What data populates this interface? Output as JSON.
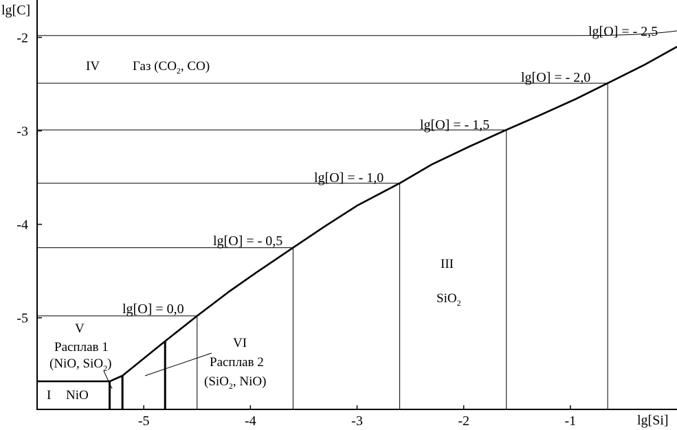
{
  "chart_data": {
    "type": "line",
    "title": "",
    "xlabel": "lg[Si]",
    "ylabel": "lg[C]",
    "xlim": [
      -6.0,
      0.0
    ],
    "ylim": [
      -5.98,
      -1.6
    ],
    "x_ticks": [
      -5,
      -4,
      -3,
      -2,
      -1
    ],
    "x_tick_labels": [
      "-5",
      "-4",
      "-3",
      "-2",
      "-1"
    ],
    "y_ticks": [
      -2,
      -3,
      -4,
      -5
    ],
    "y_tick_labels": [
      "-2",
      "-3",
      "-4",
      "-5"
    ],
    "grid": false,
    "boundary": {
      "name": "",
      "x": [
        -5.32,
        -5.2,
        -4.8,
        -4.5,
        -4.2,
        -3.95,
        -3.6,
        -3.3,
        -3.0,
        -2.6,
        -2.3,
        -1.95,
        -1.6,
        -1.3,
        -0.95,
        -0.65,
        -0.3,
        0.0
      ],
      "y": [
        -5.68,
        -5.62,
        -5.25,
        -4.98,
        -4.72,
        -4.52,
        -4.25,
        -4.02,
        -3.8,
        -3.56,
        -3.36,
        -3.17,
        -2.99,
        -2.84,
        -2.66,
        -2.49,
        -2.29,
        -2.1
      ]
    },
    "isolines": [
      {
        "label": "lg[O] = 0,0",
        "y": -4.98,
        "x_end": -4.5
      },
      {
        "label": "lg[O] = - 0,5",
        "y": -4.25,
        "x_end": -3.6
      },
      {
        "label": "lg[O] = - 1,0",
        "y": -3.56,
        "x_end": -2.6
      },
      {
        "label": "lg[O] = - 1,5",
        "y": -2.99,
        "x_end": -1.6
      },
      {
        "label": "lg[O] = - 2,0",
        "y": -2.49,
        "x_end": -0.65
      },
      {
        "label": "lg[O] = - 2,5",
        "y_start": -1.98,
        "y_end": -1.93
      }
    ],
    "phase_boundaries": [
      {
        "x": -5.32,
        "y_top": -5.68
      },
      {
        "x": -5.2,
        "y_top": -5.62
      },
      {
        "x": -4.8,
        "y_top": -5.25
      }
    ],
    "regions": [
      {
        "numeral": "I",
        "phase": "NiO"
      },
      {
        "numeral": "III",
        "phase": "SiO2"
      },
      {
        "numeral": "IV",
        "phase": "Газ (CO2, CO)"
      },
      {
        "numeral": "V",
        "phase": "Расплав 1",
        "composition": "(NiO, SiO2)"
      },
      {
        "numeral": "VI",
        "phase": "Расплав 2",
        "composition": "(SiO2, NiO)"
      }
    ],
    "text": {
      "region_I": "I",
      "region_I_phase": "NiO",
      "region_III": "III",
      "region_III_phase_base": "SiO",
      "region_IV": "IV",
      "region_IV_gas_a": "Газ (CO",
      "region_IV_gas_b": ", CO)",
      "region_V": "V",
      "region_V_melt": "Расплав 1",
      "region_V_comp_a": "(NiO, SiO",
      "region_V_comp_b": ")",
      "region_VI": "VI",
      "region_VI_melt": "Расплав 2",
      "region_VI_comp_a": "(SiO",
      "region_VI_comp_b": ", NiO)",
      "subscript_2": "2"
    }
  }
}
